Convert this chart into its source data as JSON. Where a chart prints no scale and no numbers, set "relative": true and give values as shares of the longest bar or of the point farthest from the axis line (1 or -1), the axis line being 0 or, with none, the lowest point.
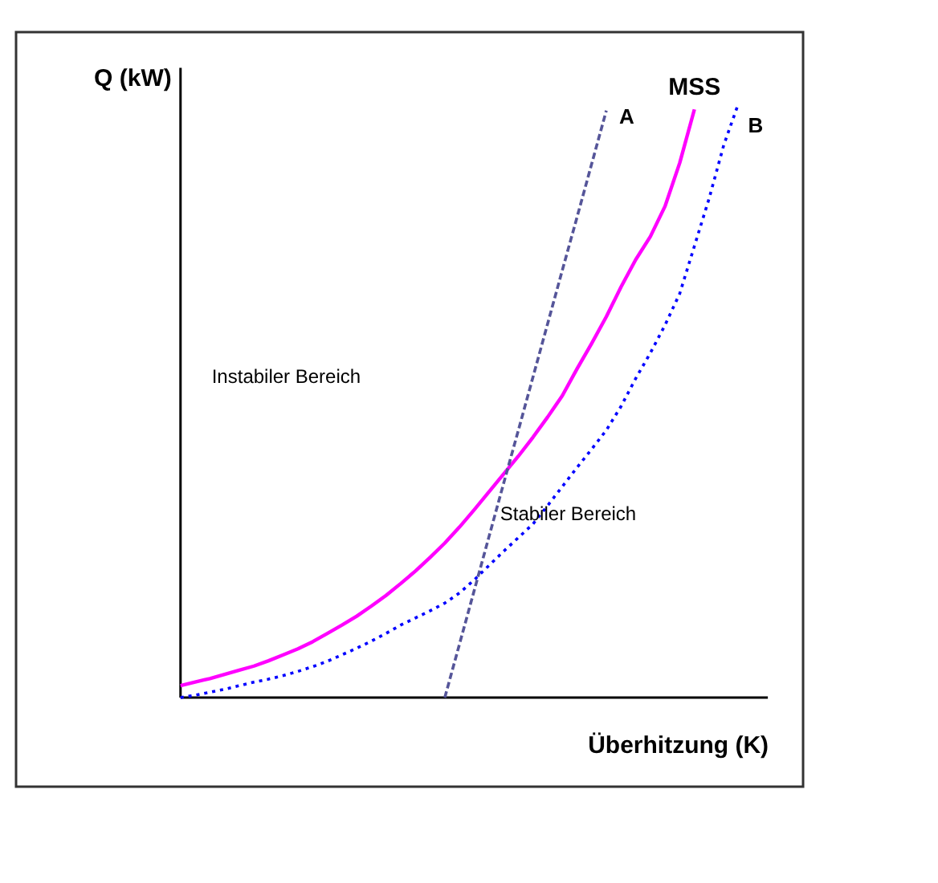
{
  "chart_data": {
    "type": "line",
    "relative": true,
    "xlabel": "Überhitzung (K)",
    "ylabel": "Q (kW)",
    "tick_labels": false,
    "grid": false,
    "annotations": [
      "Instabiler Bereich",
      "Stabiler Bereich"
    ],
    "categories": [
      null,
      null,
      null,
      null,
      null,
      null,
      null,
      null,
      null,
      null,
      null,
      null,
      null,
      null,
      null,
      null,
      null,
      null,
      null,
      null,
      null,
      null,
      null,
      null,
      null,
      null,
      null,
      null,
      null,
      null,
      null,
      null,
      null,
      null,
      null,
      null,
      null,
      null,
      null
    ],
    "series": [
      {
        "name": "MSS",
        "color": "#ff00ff",
        "line_style": "solid",
        "values": [
          0.02,
          0.026,
          0.032,
          0.039,
          0.046,
          0.053,
          0.062,
          0.072,
          0.082,
          0.094,
          0.108,
          0.122,
          0.137,
          0.154,
          0.172,
          0.192,
          0.213,
          0.236,
          0.26,
          0.287,
          0.316,
          0.346,
          0.376,
          0.406,
          0.438,
          0.472,
          0.508,
          0.553,
          0.596,
          0.641,
          0.691,
          0.737,
          0.776,
          0.827,
          0.9,
          0.99,
          null,
          null,
          null
        ]
      },
      {
        "name": "A",
        "color": "#555599",
        "line_style": "dashed",
        "values": [
          null,
          null,
          null,
          null,
          null,
          null,
          null,
          null,
          null,
          null,
          null,
          null,
          null,
          null,
          null,
          null,
          null,
          null,
          0,
          0.09,
          0.18,
          0.27,
          0.36,
          0.449,
          0.539,
          0.629,
          0.719,
          0.808,
          0.898,
          0.988,
          null,
          null,
          null,
          null,
          null,
          null,
          null,
          null,
          null
        ]
      },
      {
        "name": "B",
        "color": "#0000ff",
        "line_style": "dotted",
        "values": [
          0,
          0.004,
          0.009,
          0.014,
          0.02,
          0.026,
          0.031,
          0.037,
          0.044,
          0.052,
          0.061,
          0.072,
          0.083,
          0.095,
          0.108,
          0.122,
          0.134,
          0.146,
          0.159,
          0.176,
          0.198,
          0.222,
          0.246,
          0.269,
          0.292,
          0.323,
          0.355,
          0.387,
          0.418,
          0.45,
          0.49,
          0.537,
          0.58,
          0.627,
          0.68,
          0.76,
          0.84,
          0.93,
          1.0
        ]
      }
    ]
  }
}
